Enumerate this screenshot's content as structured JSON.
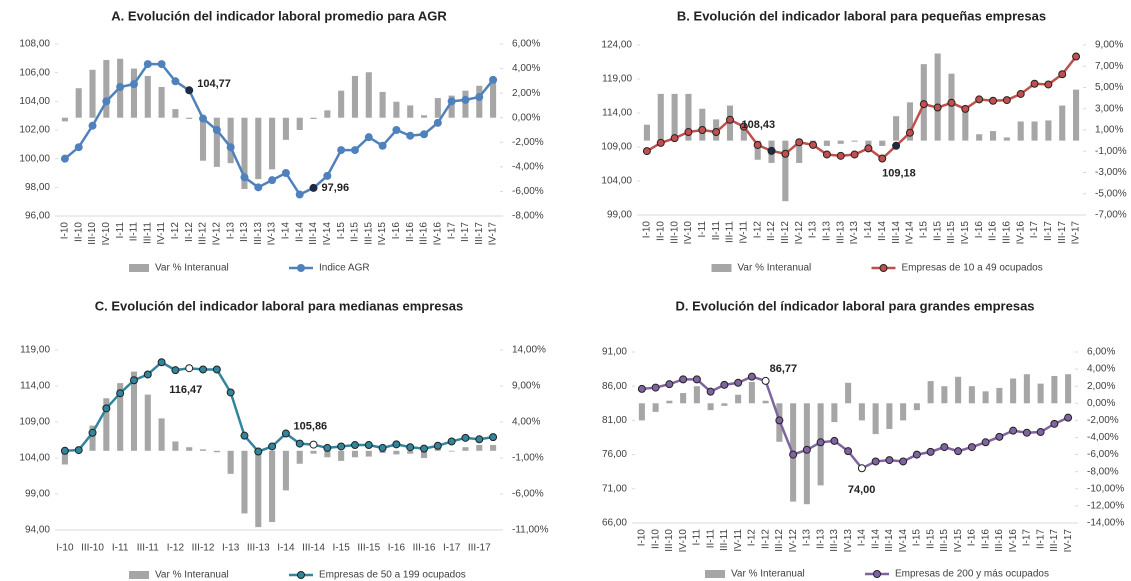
{
  "chart_data": [
    {
      "type": "combo",
      "title": "A. Evolución del indicador laboral promedio para AGR",
      "categories": [
        "I-10",
        "II-10",
        "III-10",
        "IV-10",
        "I-11",
        "II-11",
        "III-11",
        "IV-11",
        "I-12",
        "II-12",
        "III-12",
        "IV-12",
        "I-13",
        "II-13",
        "III-13",
        "IV-13",
        "I-14",
        "II-14",
        "III-14",
        "IV-14",
        "I-15",
        "II-15",
        "III-15",
        "IV-15",
        "I-16",
        "II-16",
        "III-16",
        "IV-16",
        "I-17",
        "II-17",
        "III-17",
        "IV-17"
      ],
      "ylim": [
        96,
        108
      ],
      "yticks": [
        {
          "value": 96,
          "label": "96,00"
        },
        {
          "value": 98,
          "label": "98,00"
        },
        {
          "value": 100,
          "label": "100,00"
        },
        {
          "value": 102,
          "label": "102,00"
        },
        {
          "value": 104,
          "label": "104,00"
        },
        {
          "value": 106,
          "label": "106,00"
        },
        {
          "value": 108,
          "label": "108,00"
        }
      ],
      "y2lim": [
        -8,
        6
      ],
      "y2ticks": [
        {
          "value": -8,
          "label": "-8,00%"
        },
        {
          "value": -6,
          "label": "-6,00%"
        },
        {
          "value": -4,
          "label": "-4,00%"
        },
        {
          "value": -2,
          "label": "-2,00%"
        },
        {
          "value": 0,
          "label": "0,00%"
        },
        {
          "value": 2,
          "label": "2,00%"
        },
        {
          "value": 4,
          "label": "4,00%"
        },
        {
          "value": 6,
          "label": "6,00%"
        }
      ],
      "series": [
        {
          "name": "Var % Interanual",
          "type": "bar",
          "axis": "y2",
          "color": "#a6a6a6",
          "values": [
            -0.3,
            2.4,
            3.9,
            4.7,
            4.8,
            4.0,
            3.4,
            2.5,
            0.7,
            -0.1,
            -3.5,
            -4.0,
            -3.7,
            -5.8,
            -5.0,
            -4.2,
            -1.8,
            -1.0,
            -0.1,
            0.6,
            2.2,
            3.4,
            3.7,
            2.1,
            1.3,
            1.0,
            0.2,
            1.6,
            1.8,
            2.2,
            2.6,
            2.9
          ]
        },
        {
          "name": "Indice AGR",
          "type": "line",
          "color": "#4f81bd",
          "values": [
            100.0,
            100.8,
            102.3,
            104.0,
            105.0,
            105.2,
            106.6,
            106.6,
            105.4,
            104.77,
            102.8,
            102.0,
            100.8,
            98.7,
            98.0,
            98.5,
            99.0,
            97.5,
            97.96,
            98.8,
            100.6,
            100.6,
            101.5,
            100.9,
            102.0,
            101.6,
            101.7,
            102.5,
            104.0,
            104.1,
            104.3,
            105.5
          ],
          "value_labels": [
            null,
            null,
            null,
            null,
            null,
            null,
            null,
            null,
            null,
            "104,77",
            null,
            null,
            null,
            null,
            null,
            null,
            null,
            null,
            "97,96",
            null,
            null,
            null,
            null,
            null,
            null,
            null,
            null,
            null,
            null,
            null,
            null,
            null
          ]
        }
      ]
    },
    {
      "type": "combo",
      "title": "B. Evolución del indicador laboral para pequeñas empresas",
      "categories": [
        "I-10",
        "II-10",
        "III-10",
        "IV-10",
        "I-11",
        "II-11",
        "III-11",
        "IV-11",
        "I-12",
        "II-12",
        "III-12",
        "IV-12",
        "I-13",
        "II-13",
        "III-13",
        "IV-13",
        "I-14",
        "II-14",
        "III-14",
        "IV-14",
        "I-15",
        "II-15",
        "III-15",
        "IV-15",
        "I-16",
        "II-16",
        "III-16",
        "IV-16",
        "I-17",
        "II-17",
        "III-17",
        "IV-17"
      ],
      "ylim": [
        99,
        124
      ],
      "yticks": [
        {
          "value": 99,
          "label": "99,00"
        },
        {
          "value": 104,
          "label": "104,00"
        },
        {
          "value": 109,
          "label": "109,00"
        },
        {
          "value": 114,
          "label": "114,00"
        },
        {
          "value": 119,
          "label": "119,00"
        },
        {
          "value": 124,
          "label": "124,00"
        }
      ],
      "y2lim": [
        -7,
        9
      ],
      "y2ticks": [
        {
          "value": -7,
          "label": "-7,00%"
        },
        {
          "value": -5,
          "label": "-5,00%"
        },
        {
          "value": -3,
          "label": "-3,00%"
        },
        {
          "value": -1,
          "label": "-1,00%"
        },
        {
          "value": 1,
          "label": "1,00%"
        },
        {
          "value": 3,
          "label": "3,00%"
        },
        {
          "value": 5,
          "label": "5,00%"
        },
        {
          "value": 7,
          "label": "7,00%"
        },
        {
          "value": 9,
          "label": "9,00%"
        }
      ],
      "series": [
        {
          "name": "Var % Interanual",
          "type": "bar",
          "axis": "y2",
          "color": "#a6a6a6",
          "values": [
            1.5,
            4.4,
            4.4,
            4.4,
            3.0,
            2.0,
            3.3,
            1.3,
            -1.8,
            -2.1,
            -5.7,
            -2.1,
            -0.5,
            -0.5,
            -0.3,
            -0.1,
            -0.4,
            -0.5,
            2.3,
            3.6,
            7.2,
            8.2,
            6.3,
            3.2,
            0.6,
            0.9,
            0.3,
            1.8,
            1.8,
            1.9,
            3.3,
            4.8
          ]
        },
        {
          "name": "Empresas de 10 a 49 ocupados",
          "type": "line",
          "color": "#c0504d",
          "values": [
            108.4,
            109.6,
            110.3,
            111.2,
            111.5,
            111.2,
            113.0,
            112.0,
            109.3,
            108.43,
            108.0,
            109.7,
            109.3,
            107.9,
            107.7,
            107.9,
            108.8,
            107.3,
            109.18,
            111.1,
            115.3,
            114.8,
            115.5,
            114.6,
            116.0,
            115.8,
            115.9,
            116.8,
            118.3,
            118.2,
            119.7,
            122.3
          ],
          "value_labels": [
            null,
            null,
            null,
            null,
            null,
            null,
            null,
            null,
            null,
            "108,43",
            null,
            null,
            null,
            null,
            null,
            null,
            null,
            null,
            "109,18",
            null,
            null,
            null,
            null,
            null,
            null,
            null,
            null,
            null,
            null,
            null,
            null,
            null
          ]
        }
      ]
    },
    {
      "type": "combo",
      "title": "C. Evolución del indicador laboral para medianas empresas",
      "categories": [
        "I-10",
        null,
        "III-10",
        null,
        "I-11",
        null,
        "III-11",
        null,
        "I-12",
        null,
        "III-12",
        null,
        "I-13",
        null,
        "III-13",
        null,
        "I-14",
        null,
        "III-14",
        null,
        "I-15",
        null,
        "III-15",
        null,
        "I-16",
        null,
        "III-16",
        null,
        "I-17",
        null,
        "III-17",
        null
      ],
      "ylim": [
        94,
        119
      ],
      "yticks": [
        {
          "value": 94,
          "label": "94,00"
        },
        {
          "value": 99,
          "label": "99,00"
        },
        {
          "value": 104,
          "label": "104,00"
        },
        {
          "value": 109,
          "label": "109,00"
        },
        {
          "value": 114,
          "label": "114,00"
        },
        {
          "value": 119,
          "label": "119,00"
        }
      ],
      "y2lim": [
        -11,
        14
      ],
      "y2ticks": [
        {
          "value": -11,
          "label": "-11,00%"
        },
        {
          "value": -6,
          "label": "-6,00%"
        },
        {
          "value": -1,
          "label": "-1,00%"
        },
        {
          "value": 4,
          "label": "4,00%"
        },
        {
          "value": 9,
          "label": "9,00%"
        },
        {
          "value": 14,
          "label": "14,00%"
        }
      ],
      "series": [
        {
          "name": "Var % Interanual",
          "type": "bar",
          "axis": "y2",
          "color": "#a6a6a6",
          "values": [
            -1.9,
            0.2,
            3.5,
            7.3,
            9.4,
            11.0,
            7.8,
            4.5,
            1.3,
            0.5,
            0.2,
            -0.2,
            -3.2,
            -8.7,
            -10.6,
            -9.9,
            -5.5,
            -1.8,
            -0.4,
            -0.9,
            -1.4,
            -0.9,
            -0.8,
            -0.3,
            -0.5,
            -0.4,
            -1.0,
            0.4,
            -0.1,
            0.5,
            0.8,
            0.8
          ]
        },
        {
          "name": "Empresas de 50 a 199 ocupados",
          "type": "line",
          "color": "#31859c",
          "values": [
            105.0,
            105.1,
            107.5,
            110.9,
            113.0,
            114.8,
            115.6,
            117.3,
            116.2,
            116.47,
            116.3,
            116.3,
            113.1,
            107.1,
            104.9,
            105.6,
            107.4,
            106.0,
            105.86,
            105.4,
            105.6,
            105.8,
            105.8,
            105.4,
            105.9,
            105.5,
            105.3,
            105.7,
            106.3,
            106.8,
            106.6,
            106.9
          ],
          "value_labels": [
            null,
            null,
            null,
            null,
            null,
            null,
            null,
            null,
            null,
            "116,47",
            null,
            null,
            null,
            null,
            null,
            null,
            null,
            null,
            "105,86",
            null,
            null,
            null,
            null,
            null,
            null,
            null,
            null,
            null,
            null,
            null,
            null,
            null
          ]
        }
      ]
    },
    {
      "type": "combo",
      "title": "D. Evolución del índicador laboral para grandes empresas",
      "categories": [
        "I-10",
        "II-10",
        "III-10",
        "IV-10",
        "I-11",
        "II-11",
        "III-11",
        "IV-11",
        "I-12",
        "II-12",
        "III-12",
        "IV-12",
        "I-13",
        "II-13",
        "III-13",
        "IV-13",
        "I-14",
        "II-14",
        "III-14",
        "IV-14",
        "I-15",
        "II-15",
        "III-15",
        "IV-15",
        "I-16",
        "II-16",
        "III-16",
        "IV-16",
        "I-17",
        "II-17",
        "III-17",
        "IV-17"
      ],
      "ylim": [
        66,
        91
      ],
      "yticks": [
        {
          "value": 66,
          "label": "66,00"
        },
        {
          "value": 71,
          "label": "71,00"
        },
        {
          "value": 76,
          "label": "76,00"
        },
        {
          "value": 81,
          "label": "81,00"
        },
        {
          "value": 86,
          "label": "86,00"
        },
        {
          "value": 91,
          "label": "91,00"
        }
      ],
      "y2lim": [
        -14,
        6
      ],
      "y2ticks": [
        {
          "value": -14,
          "label": "-14,00%"
        },
        {
          "value": -12,
          "label": "-12,00%"
        },
        {
          "value": -10,
          "label": "-10,00%"
        },
        {
          "value": -8,
          "label": "-8,00%"
        },
        {
          "value": -6,
          "label": "-6,00%"
        },
        {
          "value": -4,
          "label": "-4,00%"
        },
        {
          "value": -2,
          "label": "-2,00%"
        },
        {
          "value": 0,
          "label": "0,00%"
        },
        {
          "value": 2,
          "label": "2,00%"
        },
        {
          "value": 4,
          "label": "4,00%"
        },
        {
          "value": 6,
          "label": "6,00%"
        }
      ],
      "series": [
        {
          "name": "Var % Interanual",
          "type": "bar",
          "axis": "y2",
          "color": "#a6a6a6",
          "values": [
            -2.0,
            -1.0,
            0.3,
            1.2,
            2.0,
            -0.8,
            -0.3,
            1.0,
            2.5,
            0.3,
            -4.5,
            -11.5,
            -11.8,
            -9.6,
            -2.2,
            2.4,
            -2.0,
            -3.6,
            -3.0,
            -2.0,
            -0.8,
            2.6,
            2.0,
            3.1,
            2.0,
            1.4,
            1.8,
            2.9,
            3.4,
            2.3,
            3.2,
            3.4
          ]
        },
        {
          "name": "Empresas de 200 y más ocupados",
          "type": "line",
          "color": "#8064a2",
          "values": [
            85.6,
            85.8,
            86.3,
            87.0,
            87.0,
            85.2,
            86.2,
            86.5,
            87.4,
            86.77,
            81.0,
            76.0,
            76.7,
            77.8,
            78.0,
            76.5,
            74.0,
            75.0,
            75.2,
            75.0,
            76.0,
            76.4,
            77.1,
            76.5,
            77.1,
            77.8,
            78.6,
            79.5,
            79.2,
            79.3,
            80.5,
            81.4
          ],
          "value_labels": [
            null,
            null,
            null,
            null,
            null,
            null,
            null,
            null,
            null,
            "86,77",
            null,
            null,
            null,
            null,
            null,
            null,
            "74,00",
            null,
            null,
            null,
            null,
            null,
            null,
            null,
            null,
            null,
            null,
            null,
            null,
            null,
            null,
            null
          ]
        }
      ]
    }
  ]
}
